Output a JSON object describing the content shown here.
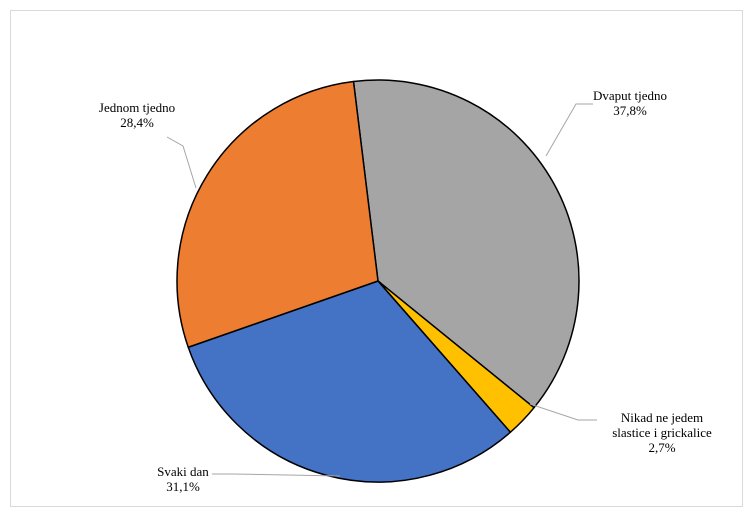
{
  "chart_data": {
    "type": "pie",
    "title": "",
    "slices": [
      {
        "name": "Dvaput tjedno",
        "value": 37.8,
        "label": "37,8%",
        "color": "#a5a5a5"
      },
      {
        "name": "Nikad ne jedem slastice i grickalice",
        "name_lines": [
          "Nikad ne jedem",
          "slastice i grickalice"
        ],
        "value": 2.7,
        "label": "2,7%",
        "color": "#ffc000"
      },
      {
        "name": "Svaki dan",
        "value": 31.1,
        "label": "31,1%",
        "color": "#4472c4"
      },
      {
        "name": "Jednom tjedno",
        "value": 28.4,
        "label": "28,4%",
        "color": "#ed7d31"
      }
    ],
    "start_angle_deg": -7,
    "direction": "clockwise",
    "legend": "none",
    "data_labels": "outside-with-leader-lines"
  }
}
